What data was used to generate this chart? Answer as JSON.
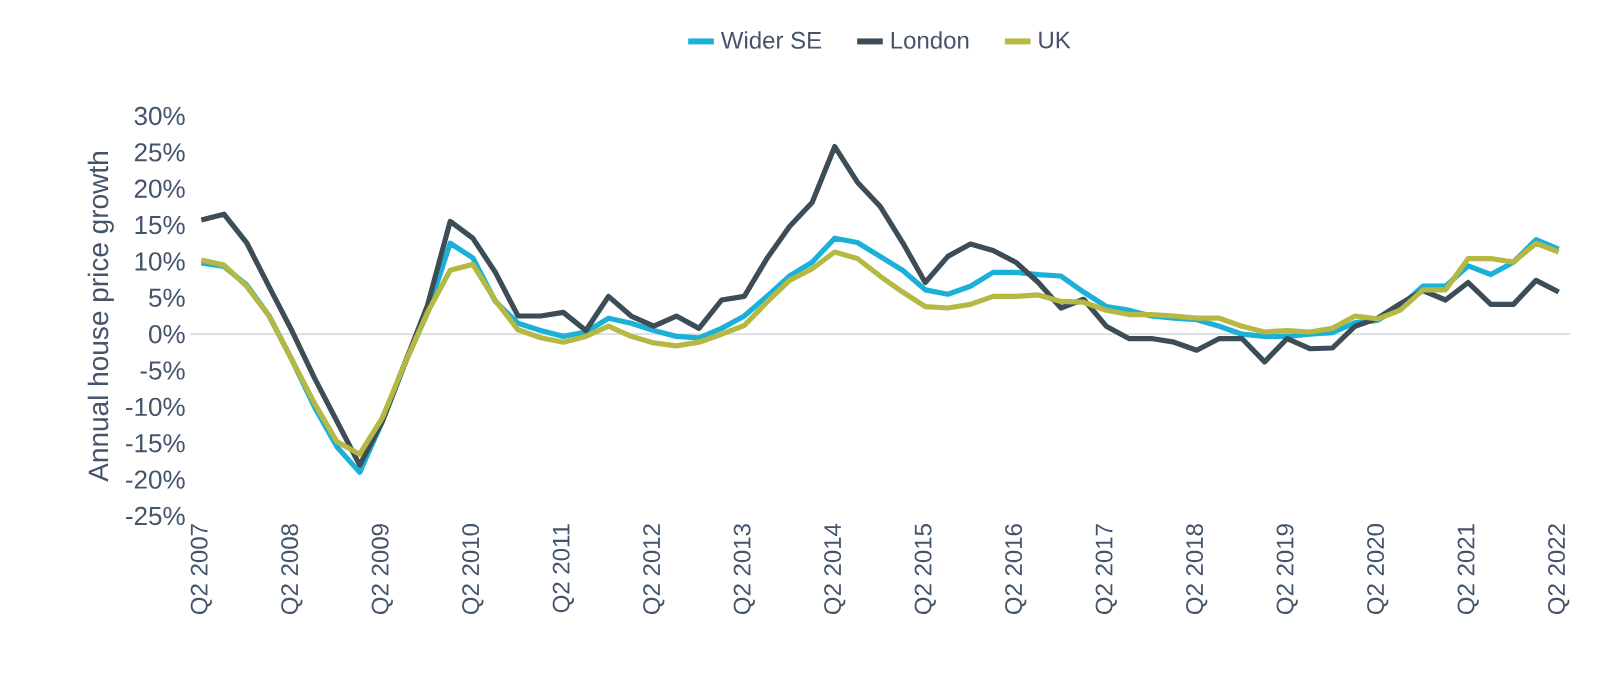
{
  "chart_data": {
    "type": "line",
    "ylabel": "Annual house price growth",
    "categories": [
      "Q2 2007",
      null,
      null,
      null,
      "Q2 2008",
      null,
      null,
      null,
      "Q2 2009",
      null,
      null,
      null,
      "Q2 2010",
      null,
      null,
      null,
      "Q2 2011",
      null,
      null,
      null,
      "Q2 2012",
      null,
      null,
      null,
      "Q2 2013",
      null,
      null,
      null,
      "Q2 2014",
      null,
      null,
      null,
      "Q2 2015",
      null,
      null,
      null,
      "Q2 2016",
      null,
      null,
      null,
      "Q2 2017",
      null,
      null,
      null,
      "Q2 2018",
      null,
      null,
      null,
      "Q2 2019",
      null,
      null,
      null,
      "Q2 2020",
      null,
      null,
      null,
      "Q2 2021",
      null,
      null,
      null,
      "Q2 2022"
    ],
    "series": [
      {
        "name": "Wider SE",
        "color": "#1ab0d8",
        "values": [
          9.8,
          9.3,
          6.8,
          2.5,
          -3.5,
          -10,
          -15.5,
          -19,
          -12,
          -4,
          3,
          12.5,
          10.5,
          4.5,
          1.5,
          0.5,
          -0.3,
          0.3,
          2.2,
          1.5,
          0.5,
          -0.3,
          -0.5,
          0.8,
          2.5,
          5.2,
          8,
          9.9,
          13.2,
          12.6,
          10.7,
          8.8,
          6.1,
          5.5,
          6.6,
          8.5,
          8.5,
          8.2,
          8,
          5.8,
          3.8,
          3.3,
          2.5,
          2.2,
          2,
          1.1,
          0,
          -0.3,
          -0.3,
          0,
          0.2,
          1.6,
          1.9,
          3.8,
          6.6,
          6.6,
          9.4,
          8.2,
          9.9,
          13,
          11.7
        ]
      },
      {
        "name": "London",
        "color": "#3d4d57",
        "values": [
          15.7,
          16.5,
          12.6,
          6.5,
          0.5,
          -6,
          -12,
          -18,
          -12,
          -4,
          4,
          15.5,
          13.2,
          8.5,
          2.5,
          2.5,
          3,
          0.5,
          5.2,
          2.5,
          1.1,
          2.5,
          0.8,
          4.7,
          5.2,
          10.4,
          14.8,
          18.1,
          25.8,
          20.9,
          17.6,
          12.6,
          7.1,
          10.7,
          12.4,
          11.5,
          9.9,
          7.1,
          3.6,
          4.8,
          1.1,
          -0.6,
          -0.6,
          -1.1,
          -2.2,
          -0.6,
          -0.6,
          -3.8,
          -0.6,
          -2,
          -1.9,
          1.1,
          2.2,
          4.2,
          6,
          4.7,
          7.1,
          4.1,
          4.1,
          7.4,
          5.8
        ]
      },
      {
        "name": "UK",
        "color": "#b5b944",
        "values": [
          10.2,
          9.5,
          6.6,
          2.5,
          -3.5,
          -9.5,
          -14.8,
          -16.5,
          -11.5,
          -4,
          3,
          8.8,
          9.6,
          4.6,
          0.6,
          -0.5,
          -1.1,
          -0.3,
          1.1,
          -0.3,
          -1.2,
          -1.6,
          -1.1,
          0,
          1.2,
          4.4,
          7.4,
          9,
          11.3,
          10.4,
          8,
          5.8,
          3.8,
          3.6,
          4.1,
          5.2,
          5.2,
          5.4,
          4.5,
          4.4,
          3.3,
          2.7,
          2.7,
          2.5,
          2.2,
          2.2,
          1.1,
          0.3,
          0.5,
          0.3,
          0.8,
          2.5,
          2.1,
          3.3,
          6.1,
          6.1,
          10.4,
          10.4,
          9.9,
          12.5,
          11.3
        ]
      }
    ],
    "ylim": [
      -25,
      30
    ],
    "yticks": [
      {
        "value": -25,
        "label": "-25%"
      },
      {
        "value": -20,
        "label": "-20%"
      },
      {
        "value": -15,
        "label": "-15%"
      },
      {
        "value": -10,
        "label": "-10%"
      },
      {
        "value": -5,
        "label": "-5%"
      },
      {
        "value": 0,
        "label": "0%"
      },
      {
        "value": 5,
        "label": "5%"
      },
      {
        "value": 10,
        "label": "10%"
      },
      {
        "value": 15,
        "label": "15%"
      },
      {
        "value": 20,
        "label": "20%"
      },
      {
        "value": 25,
        "label": "25%"
      },
      {
        "value": 30,
        "label": "30%"
      }
    ],
    "ref_lines": [
      {
        "axis": "y",
        "value": 0,
        "color": "#d9dee3"
      }
    ],
    "grid": false,
    "legend": "top",
    "marker": "none",
    "line_style": "solid"
  }
}
